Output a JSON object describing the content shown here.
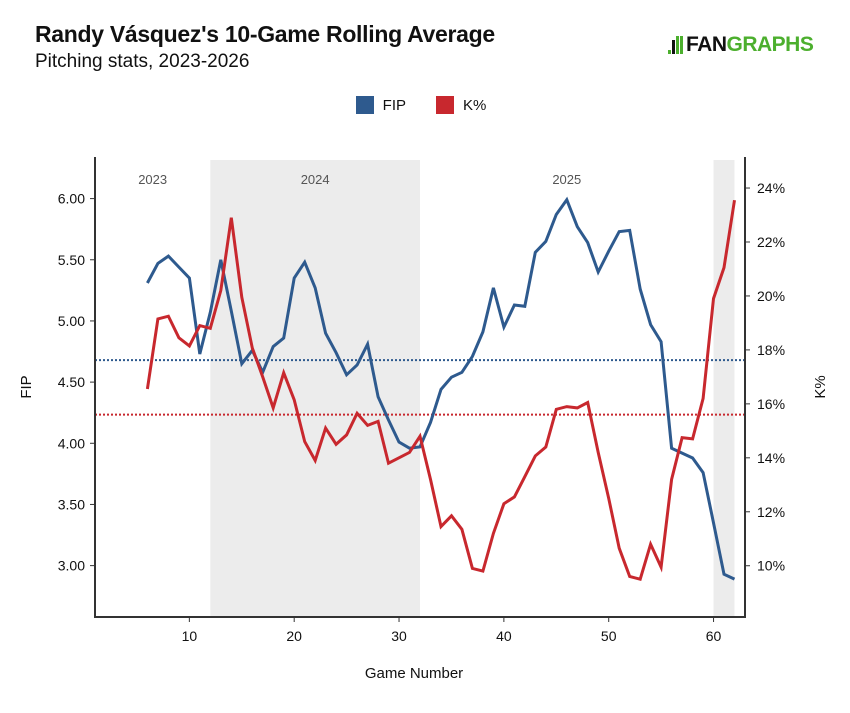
{
  "header": {
    "title": "Randy Vásquez's 10-Game Rolling Average",
    "subtitle": "Pitching stats, 2023-2026",
    "logo_fan": "FAN",
    "logo_graphs": "GRAPHS"
  },
  "colors": {
    "fip": "#2e5a8e",
    "k_pct": "#c8282e",
    "shade": "#ececec",
    "brand": "#4caf2e"
  },
  "chart_data": {
    "type": "line",
    "title": "Randy Vásquez's 10-Game Rolling Average",
    "subtitle": "Pitching stats, 2023-2026",
    "xlabel": "Game Number",
    "ylabel_left": "FIP",
    "ylabel_right": "K%",
    "xlim": [
      1,
      63
    ],
    "ylim_left": [
      2.58,
      6.34
    ],
    "ylim_right": [
      8.1,
      25.15
    ],
    "x_ticks": [
      10,
      20,
      30,
      40,
      50,
      60
    ],
    "y_ticks_left": [
      "3.00",
      "3.50",
      "4.00",
      "4.50",
      "5.00",
      "5.50",
      "6.00"
    ],
    "y_ticks_left_values": [
      3.0,
      3.5,
      4.0,
      4.5,
      5.0,
      5.5,
      6.0
    ],
    "y_ticks_right": [
      "10%",
      "12%",
      "14%",
      "16%",
      "18%",
      "20%",
      "22%",
      "24%"
    ],
    "y_ticks_right_values": [
      10,
      12,
      14,
      16,
      18,
      20,
      22,
      24
    ],
    "legend": [
      {
        "name": "FIP",
        "color": "#2e5a8e"
      },
      {
        "name": "K%",
        "color": "#c8282e"
      }
    ],
    "legend_position": "top-center",
    "grid": false,
    "seasons": [
      {
        "label": "2023",
        "start": 1,
        "end": 12,
        "shaded": false
      },
      {
        "label": "2024",
        "start": 12,
        "end": 32,
        "shaded": true
      },
      {
        "label": "2025",
        "start": 32,
        "end": 60,
        "shaded": false
      },
      {
        "label": "",
        "start": 60,
        "end": 62,
        "shaded": true
      }
    ],
    "reference_lines": [
      {
        "series": "FIP",
        "axis": "left",
        "value": 4.68
      },
      {
        "series": "K%",
        "axis": "right",
        "value": 15.6
      }
    ],
    "x": [
      6,
      7,
      8,
      9,
      10,
      11,
      12,
      13,
      14,
      15,
      16,
      17,
      18,
      19,
      20,
      21,
      22,
      23,
      24,
      25,
      26,
      27,
      28,
      29,
      30,
      31,
      32,
      33,
      34,
      35,
      36,
      37,
      38,
      39,
      40,
      41,
      42,
      43,
      44,
      45,
      46,
      47,
      48,
      49,
      50,
      51,
      52,
      53,
      54,
      55,
      56,
      57,
      58,
      59,
      60,
      61,
      62
    ],
    "series": [
      {
        "name": "FIP",
        "axis": "left",
        "values": [
          5.31,
          5.47,
          5.53,
          5.44,
          5.35,
          4.73,
          5.07,
          5.5,
          5.08,
          4.65,
          4.76,
          4.58,
          4.79,
          4.86,
          5.35,
          5.48,
          5.27,
          4.9,
          4.74,
          4.56,
          4.64,
          4.81,
          4.38,
          4.19,
          4.01,
          3.96,
          3.97,
          4.17,
          4.44,
          4.54,
          4.58,
          4.71,
          4.91,
          5.27,
          4.95,
          5.13,
          5.12,
          5.56,
          5.65,
          5.87,
          5.99,
          5.77,
          5.64,
          5.4,
          5.57,
          5.73,
          5.74,
          5.26,
          4.97,
          4.83,
          3.96,
          3.92,
          3.88,
          3.76,
          3.35,
          2.93,
          2.89
        ]
      },
      {
        "name": "K%",
        "axis": "right",
        "values": [
          16.55,
          19.15,
          19.25,
          18.45,
          18.15,
          18.9,
          18.8,
          20.2,
          22.9,
          19.95,
          18.07,
          17.0,
          15.85,
          17.15,
          16.15,
          14.6,
          13.9,
          15.1,
          14.5,
          14.85,
          15.65,
          15.2,
          15.35,
          13.8,
          14.0,
          14.2,
          14.8,
          13.2,
          11.45,
          11.85,
          11.35,
          9.9,
          9.8,
          11.2,
          12.3,
          12.55,
          13.3,
          14.07,
          14.4,
          15.8,
          15.9,
          15.85,
          16.05,
          14.2,
          12.5,
          10.65,
          9.6,
          9.5,
          10.8,
          9.95,
          13.2,
          14.75,
          14.7,
          16.2,
          19.9,
          21.05,
          23.55
        ]
      }
    ]
  }
}
